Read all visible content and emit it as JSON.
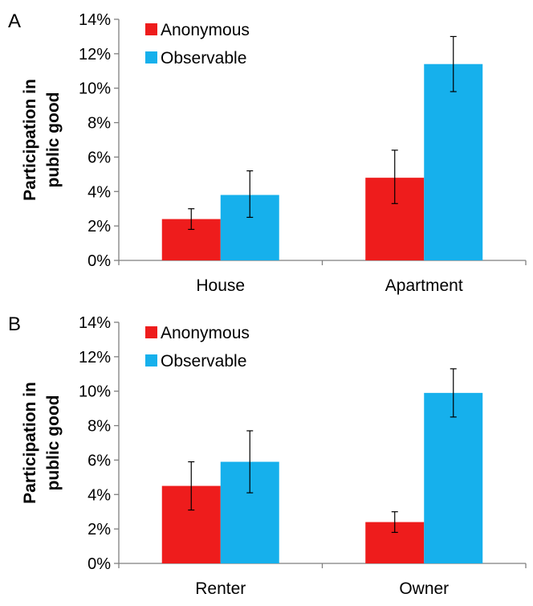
{
  "colors": {
    "anonymous": "#ee1c1c",
    "observable": "#16b0ec",
    "axis": "#7f7f7f",
    "error": "#000000"
  },
  "chart_data": [
    {
      "panel": "A",
      "type": "bar",
      "ylabel": "Participation in public good",
      "ylabel_lines": [
        "Participation in",
        "public good"
      ],
      "ylim": [
        0,
        14
      ],
      "yticks": [
        "0%",
        "2%",
        "4%",
        "6%",
        "8%",
        "10%",
        "12%",
        "14%"
      ],
      "categories": [
        "House",
        "Apartment"
      ],
      "legend": [
        "Anonymous",
        "Observable"
      ],
      "legend_position": "top-left",
      "grid": false,
      "series": [
        {
          "name": "Anonymous",
          "values": [
            2.4,
            4.8
          ],
          "error_low": [
            1.8,
            3.3
          ],
          "error_high": [
            3.0,
            6.4
          ]
        },
        {
          "name": "Observable",
          "values": [
            3.8,
            11.4
          ],
          "error_low": [
            2.5,
            9.8
          ],
          "error_high": [
            5.2,
            13.0
          ]
        }
      ]
    },
    {
      "panel": "B",
      "type": "bar",
      "ylabel": "Participation in public good",
      "ylabel_lines": [
        "Participation in",
        "public good"
      ],
      "ylim": [
        0,
        14
      ],
      "yticks": [
        "0%",
        "2%",
        "4%",
        "6%",
        "8%",
        "10%",
        "12%",
        "14%"
      ],
      "categories": [
        "Renter",
        "Owner"
      ],
      "legend": [
        "Anonymous",
        "Observable"
      ],
      "legend_position": "top-left",
      "grid": false,
      "series": [
        {
          "name": "Anonymous",
          "values": [
            4.5,
            2.4
          ],
          "error_low": [
            3.1,
            1.8
          ],
          "error_high": [
            5.9,
            3.0
          ]
        },
        {
          "name": "Observable",
          "values": [
            5.9,
            9.9
          ],
          "error_low": [
            4.1,
            8.5
          ],
          "error_high": [
            7.7,
            11.3
          ]
        }
      ]
    }
  ]
}
